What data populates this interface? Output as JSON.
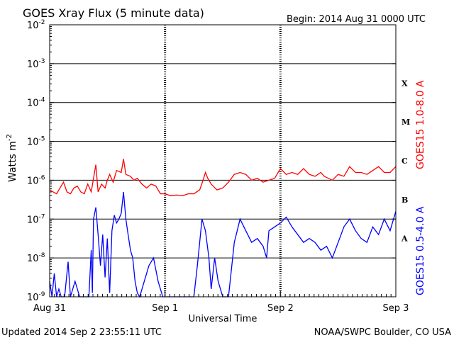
{
  "colors": {
    "long_channel": "#ff0000",
    "short_channel": "#0000ff",
    "axis": "#000000"
  },
  "chart_data": {
    "type": "line",
    "title": "GOES Xray Flux (5 minute data)",
    "begin_label": "Begin:  2014 Aug 31 0000 UTC",
    "xlabel": "Universal Time",
    "ylabel": "Watts m",
    "ylabel_exp": "-2",
    "x_ticks": [
      "Aug 31",
      "Sep 1",
      "Sep 2",
      "Sep 3"
    ],
    "x_range_days": [
      0,
      3
    ],
    "y_scale": "log",
    "y_ticks": [
      {
        "base": "10",
        "exp": "-9"
      },
      {
        "base": "10",
        "exp": "-8"
      },
      {
        "base": "10",
        "exp": "-7"
      },
      {
        "base": "10",
        "exp": "-6"
      },
      {
        "base": "10",
        "exp": "-5"
      },
      {
        "base": "10",
        "exp": "-4"
      },
      {
        "base": "10",
        "exp": "-3"
      },
      {
        "base": "10",
        "exp": "-2"
      }
    ],
    "ylim_log10": [
      -9,
      -2
    ],
    "grid_lines_log10": [
      -8,
      -7,
      -6,
      -5,
      -4,
      -3
    ],
    "flare_classes": [
      {
        "label": "X",
        "log10": -3.5
      },
      {
        "label": "M",
        "log10": -4.5
      },
      {
        "label": "C",
        "log10": -5.5
      },
      {
        "label": "B",
        "log10": -6.5
      },
      {
        "label": "A",
        "log10": -7.5
      }
    ],
    "series": [
      {
        "name": "GOES15 1.0-8.0 A",
        "values_log10": [
          [
            0.0,
            -6.25
          ],
          [
            0.03,
            -6.3
          ],
          [
            0.06,
            -6.35
          ],
          [
            0.09,
            -6.2
          ],
          [
            0.12,
            -6.05
          ],
          [
            0.15,
            -6.3
          ],
          [
            0.18,
            -6.35
          ],
          [
            0.21,
            -6.2
          ],
          [
            0.24,
            -6.15
          ],
          [
            0.27,
            -6.3
          ],
          [
            0.3,
            -6.35
          ],
          [
            0.33,
            -6.1
          ],
          [
            0.36,
            -6.3
          ],
          [
            0.4,
            -5.6
          ],
          [
            0.42,
            -6.3
          ],
          [
            0.45,
            -6.1
          ],
          [
            0.48,
            -6.2
          ],
          [
            0.5,
            -6.0
          ],
          [
            0.52,
            -5.85
          ],
          [
            0.55,
            -6.05
          ],
          [
            0.58,
            -5.75
          ],
          [
            0.62,
            -5.8
          ],
          [
            0.64,
            -5.45
          ],
          [
            0.66,
            -5.85
          ],
          [
            0.7,
            -5.9
          ],
          [
            0.73,
            -6.0
          ],
          [
            0.76,
            -5.95
          ],
          [
            0.8,
            -6.1
          ],
          [
            0.84,
            -6.2
          ],
          [
            0.88,
            -6.1
          ],
          [
            0.92,
            -6.15
          ],
          [
            0.96,
            -6.35
          ],
          [
            1.0,
            -6.35
          ],
          [
            1.05,
            -6.4
          ],
          [
            1.1,
            -6.38
          ],
          [
            1.15,
            -6.4
          ],
          [
            1.2,
            -6.35
          ],
          [
            1.25,
            -6.35
          ],
          [
            1.3,
            -6.25
          ],
          [
            1.33,
            -6.0
          ],
          [
            1.35,
            -5.8
          ],
          [
            1.37,
            -5.95
          ],
          [
            1.4,
            -6.1
          ],
          [
            1.45,
            -6.25
          ],
          [
            1.5,
            -6.2
          ],
          [
            1.55,
            -6.05
          ],
          [
            1.6,
            -5.85
          ],
          [
            1.65,
            -5.8
          ],
          [
            1.7,
            -5.85
          ],
          [
            1.75,
            -6.0
          ],
          [
            1.8,
            -5.95
          ],
          [
            1.85,
            -6.05
          ],
          [
            1.9,
            -6.0
          ],
          [
            1.95,
            -5.95
          ],
          [
            2.0,
            -5.7
          ],
          [
            2.05,
            -5.85
          ],
          [
            2.1,
            -5.8
          ],
          [
            2.15,
            -5.85
          ],
          [
            2.2,
            -5.7
          ],
          [
            2.25,
            -5.85
          ],
          [
            2.3,
            -5.9
          ],
          [
            2.35,
            -5.8
          ],
          [
            2.38,
            -5.9
          ],
          [
            2.45,
            -6.0
          ],
          [
            2.5,
            -5.85
          ],
          [
            2.55,
            -5.9
          ],
          [
            2.6,
            -5.65
          ],
          [
            2.65,
            -5.8
          ],
          [
            2.7,
            -5.8
          ],
          [
            2.75,
            -5.85
          ],
          [
            2.8,
            -5.75
          ],
          [
            2.85,
            -5.65
          ],
          [
            2.9,
            -5.8
          ],
          [
            2.95,
            -5.8
          ],
          [
            3.0,
            -5.65
          ]
        ]
      },
      {
        "name": "GOES15 0.5-4.0 A",
        "values_log10": [
          [
            0.0,
            -8.6
          ],
          [
            0.02,
            -9.0
          ],
          [
            0.04,
            -8.4
          ],
          [
            0.06,
            -9.0
          ],
          [
            0.08,
            -8.8
          ],
          [
            0.1,
            -9.0
          ],
          [
            0.13,
            -9.0
          ],
          [
            0.16,
            -8.1
          ],
          [
            0.18,
            -9.0
          ],
          [
            0.22,
            -8.6
          ],
          [
            0.26,
            -9.0
          ],
          [
            0.3,
            -9.0
          ],
          [
            0.34,
            -9.0
          ],
          [
            0.36,
            -7.8
          ],
          [
            0.37,
            -8.9
          ],
          [
            0.38,
            -7.0
          ],
          [
            0.4,
            -6.7
          ],
          [
            0.42,
            -7.4
          ],
          [
            0.44,
            -8.2
          ],
          [
            0.46,
            -7.4
          ],
          [
            0.48,
            -8.5
          ],
          [
            0.5,
            -7.5
          ],
          [
            0.52,
            -8.9
          ],
          [
            0.54,
            -7.3
          ],
          [
            0.56,
            -6.9
          ],
          [
            0.58,
            -7.1
          ],
          [
            0.6,
            -7.0
          ],
          [
            0.62,
            -6.85
          ],
          [
            0.64,
            -6.3
          ],
          [
            0.66,
            -7.0
          ],
          [
            0.68,
            -7.4
          ],
          [
            0.7,
            -7.8
          ],
          [
            0.72,
            -8.0
          ],
          [
            0.74,
            -8.6
          ],
          [
            0.76,
            -8.9
          ],
          [
            0.78,
            -9.0
          ],
          [
            0.82,
            -8.6
          ],
          [
            0.86,
            -8.2
          ],
          [
            0.9,
            -8.0
          ],
          [
            0.94,
            -8.6
          ],
          [
            0.98,
            -9.0
          ],
          [
            1.05,
            -9.0
          ],
          [
            1.15,
            -9.0
          ],
          [
            1.25,
            -9.0
          ],
          [
            1.28,
            -8.2
          ],
          [
            1.3,
            -7.6
          ],
          [
            1.32,
            -7.0
          ],
          [
            1.35,
            -7.3
          ],
          [
            1.38,
            -8.0
          ],
          [
            1.4,
            -8.8
          ],
          [
            1.43,
            -8.0
          ],
          [
            1.46,
            -8.6
          ],
          [
            1.5,
            -9.0
          ],
          [
            1.55,
            -9.0
          ],
          [
            1.6,
            -7.6
          ],
          [
            1.65,
            -7.0
          ],
          [
            1.7,
            -7.3
          ],
          [
            1.75,
            -7.6
          ],
          [
            1.8,
            -7.5
          ],
          [
            1.85,
            -7.7
          ],
          [
            1.88,
            -8.0
          ],
          [
            1.9,
            -7.3
          ],
          [
            1.95,
            -7.2
          ],
          [
            2.0,
            -7.1
          ],
          [
            2.05,
            -6.95
          ],
          [
            2.1,
            -7.2
          ],
          [
            2.15,
            -7.4
          ],
          [
            2.2,
            -7.6
          ],
          [
            2.25,
            -7.5
          ],
          [
            2.3,
            -7.6
          ],
          [
            2.35,
            -7.8
          ],
          [
            2.4,
            -7.7
          ],
          [
            2.45,
            -8.0
          ],
          [
            2.5,
            -7.6
          ],
          [
            2.55,
            -7.2
          ],
          [
            2.6,
            -7.0
          ],
          [
            2.65,
            -7.3
          ],
          [
            2.7,
            -7.5
          ],
          [
            2.75,
            -7.6
          ],
          [
            2.8,
            -7.2
          ],
          [
            2.85,
            -7.4
          ],
          [
            2.9,
            -7.0
          ],
          [
            2.95,
            -7.3
          ],
          [
            3.0,
            -6.8
          ]
        ]
      }
    ]
  },
  "footer": {
    "updated": "Updated 2014 Sep  2 23:55:11 UTC",
    "credit": "NOAA/SWPC Boulder, CO USA"
  }
}
